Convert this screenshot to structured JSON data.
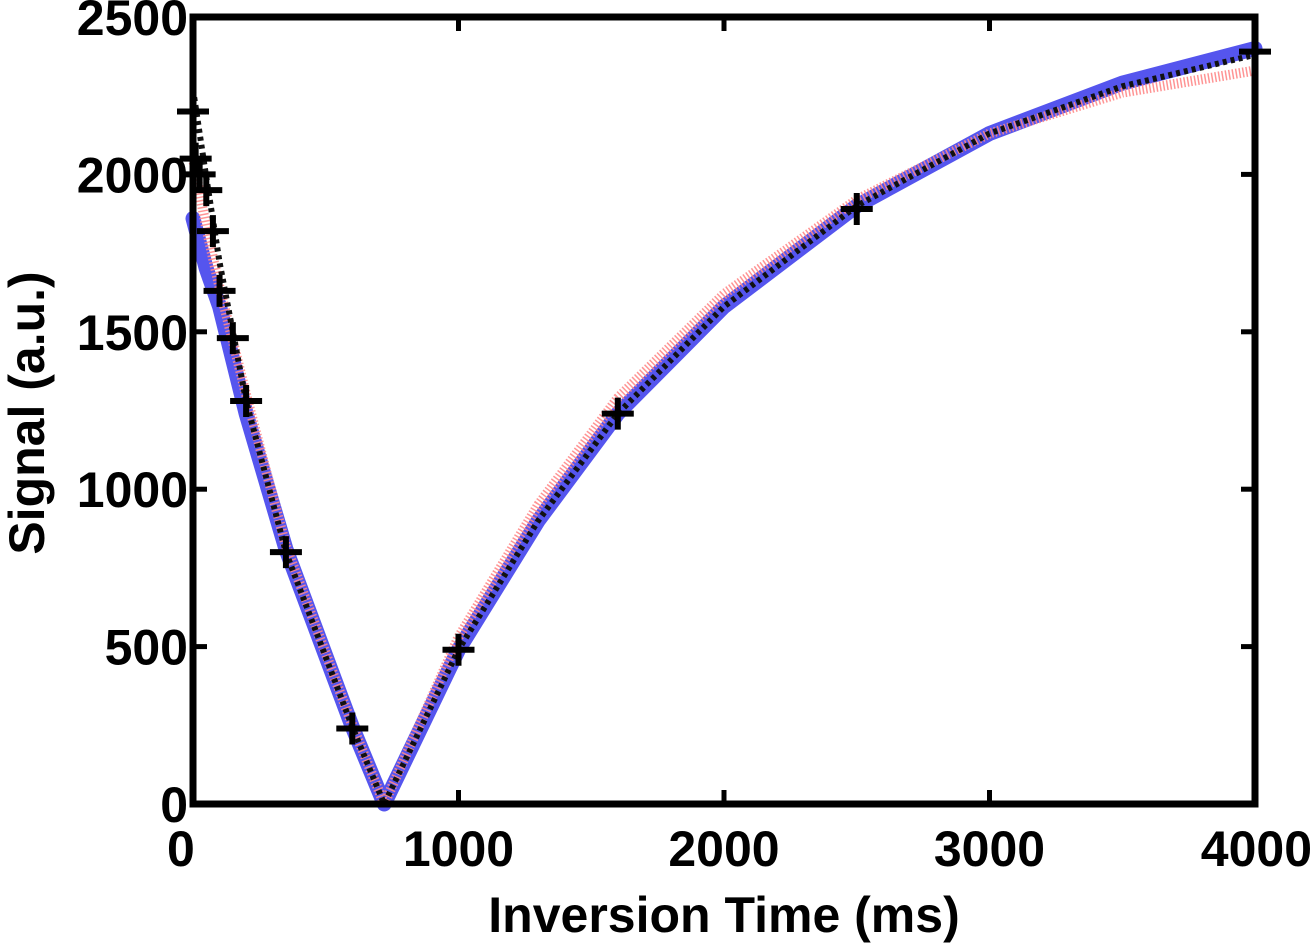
{
  "chart_data": {
    "type": "line",
    "title": "",
    "xlabel": "Inversion Time (ms)",
    "ylabel": "Signal (a.u.)",
    "xlim": [
      0,
      4000
    ],
    "ylim": [
      0,
      2500
    ],
    "x_ticks": [
      0,
      1000,
      2000,
      3000,
      4000
    ],
    "y_ticks": [
      0,
      500,
      1000,
      1500,
      2000,
      2500
    ],
    "x_tick_labels": [
      "0",
      "1000",
      "2000",
      "3000",
      "4000"
    ],
    "y_tick_labels": [
      "0",
      "500",
      "1000",
      "1500",
      "2000",
      "2500"
    ],
    "grid": false,
    "legend": "none",
    "series": [
      {
        "style": "thick-solid",
        "color": "#5555ee",
        "x": [
          0,
          50,
          100,
          200,
          350,
          600,
          720,
          1000,
          1300,
          1600,
          2000,
          2500,
          3000,
          3500,
          4000
        ],
        "y": [
          1860,
          1700,
          1580,
          1240,
          810,
          245,
          0,
          490,
          900,
          1240,
          1580,
          1900,
          2130,
          2290,
          2400
        ]
      },
      {
        "style": "dotted-thin",
        "color": "#ff8888",
        "x": [
          0,
          50,
          100,
          200,
          350,
          600,
          720,
          1000,
          1300,
          1600,
          2000,
          2500,
          3000,
          3500,
          4000
        ],
        "y": [
          2050,
          1830,
          1640,
          1300,
          820,
          250,
          0,
          530,
          950,
          1290,
          1620,
          1920,
          2130,
          2260,
          2330
        ]
      },
      {
        "style": "dotted-thick",
        "color": "#111111",
        "x": [
          0,
          50,
          100,
          200,
          350,
          600,
          720,
          1000,
          1300,
          1600,
          2000,
          2500,
          3000,
          3500,
          4000
        ],
        "y": [
          2270,
          1990,
          1720,
          1280,
          800,
          245,
          0,
          490,
          900,
          1240,
          1580,
          1900,
          2130,
          2280,
          2380
        ]
      },
      {
        "style": "markers-plus",
        "color": "#000000",
        "x": [
          0,
          10,
          25,
          50,
          75,
          100,
          150,
          200,
          350,
          600,
          1000,
          1600,
          2500,
          4000
        ],
        "y": [
          2200,
          2050,
          2000,
          1950,
          1820,
          1630,
          1480,
          1280,
          800,
          240,
          490,
          1240,
          1890,
          2390
        ]
      }
    ]
  }
}
